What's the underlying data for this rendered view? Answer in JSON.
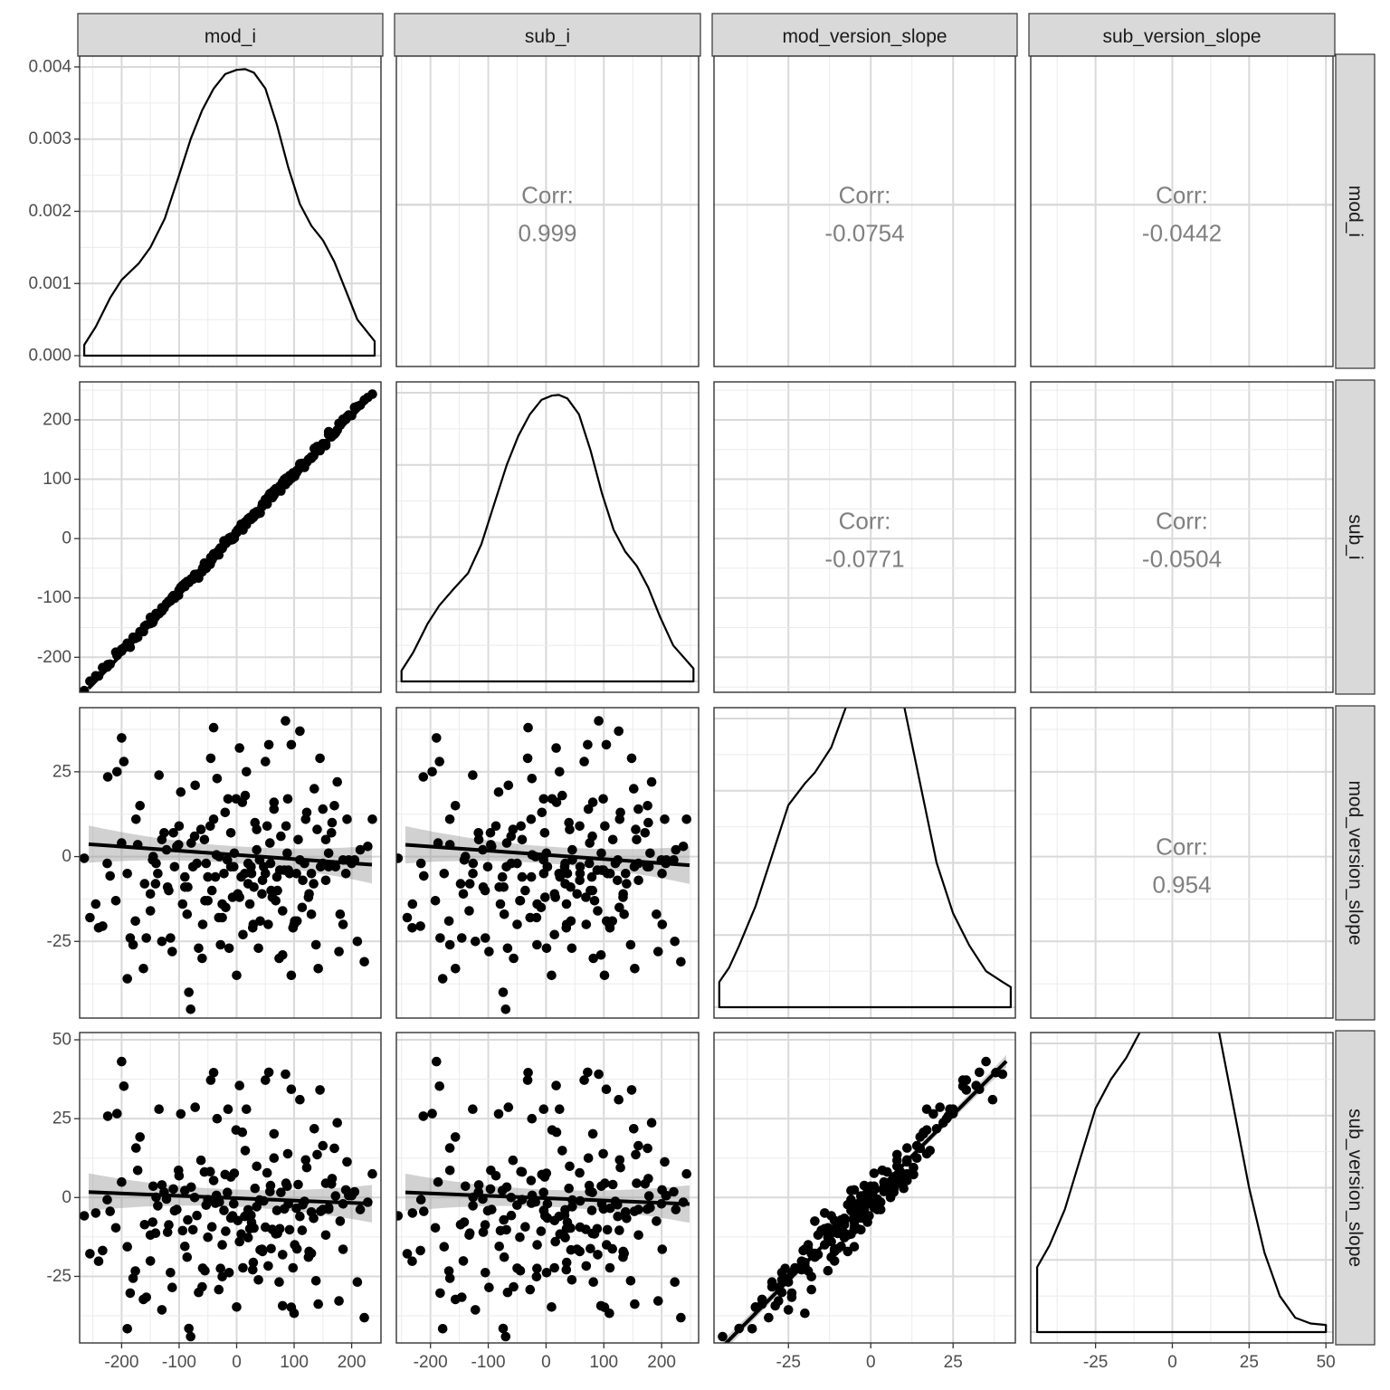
{
  "variables": [
    "mod_i",
    "sub_i",
    "mod_version_slope",
    "sub_version_slope"
  ],
  "corr_label": "Corr:",
  "chart_data": {
    "type": "scatter-matrix",
    "variables": [
      "mod_i",
      "sub_i",
      "mod_version_slope",
      "sub_version_slope"
    ],
    "ranges": {
      "mod_i": [
        -273,
        251
      ],
      "sub_i": [
        -259,
        264
      ],
      "mod_version_slope": [
        -47.6,
        43.9
      ],
      "sub_version_slope": [
        -46.1,
        52.3
      ]
    },
    "density_yrange": [
      -0.00015,
      0.00415
    ],
    "column_ticks": {
      "mod_i": [
        -200,
        -100,
        0,
        100,
        200
      ],
      "sub_i": [
        -200,
        -100,
        0,
        100,
        200
      ],
      "mod_version_slope": [
        -25,
        0,
        25
      ],
      "sub_version_slope": [
        -25,
        0,
        25,
        50
      ]
    },
    "row_ticks": {
      "mod_i": [
        0.0,
        0.001,
        0.002,
        0.003,
        0.004
      ],
      "sub_i": [
        -200,
        -100,
        0,
        100,
        200
      ],
      "mod_version_slope": [
        -25,
        0,
        25
      ],
      "sub_version_slope": [
        -25,
        0,
        25,
        50
      ]
    },
    "column_tick_labels": {
      "mod_i": [
        "-200",
        "-100",
        "0",
        "100",
        "200"
      ],
      "sub_i": [
        "-200",
        "-100",
        "0",
        "100",
        "200"
      ],
      "mod_version_slope": [
        "-25",
        "0",
        "25"
      ],
      "sub_version_slope": [
        "-25",
        "0",
        "25",
        "50"
      ]
    },
    "row_tick_labels": {
      "mod_i": [
        "0.000",
        "0.001",
        "0.002",
        "0.003",
        "0.004"
      ],
      "sub_i": [
        "-200",
        "-100",
        "0",
        "100",
        "200"
      ],
      "mod_version_slope": [
        "-25",
        "0",
        "25"
      ],
      "sub_version_slope": [
        "-25",
        "0",
        "25",
        "50"
      ]
    },
    "correlations": [
      {
        "row": "mod_i",
        "col": "sub_i",
        "value": "0.999"
      },
      {
        "row": "mod_i",
        "col": "mod_version_slope",
        "value": "-0.0754"
      },
      {
        "row": "mod_i",
        "col": "sub_version_slope",
        "value": "-0.0442"
      },
      {
        "row": "sub_i",
        "col": "mod_version_slope",
        "value": "-0.0771"
      },
      {
        "row": "sub_i",
        "col": "sub_version_slope",
        "value": "-0.0504"
      },
      {
        "row": "mod_version_slope",
        "col": "sub_version_slope",
        "value": "0.954"
      }
    ],
    "densities": {
      "mod_i": [
        [
          -265,
          0.00015
        ],
        [
          -245,
          0.0004
        ],
        [
          -220,
          0.0008
        ],
        [
          -200,
          0.00105
        ],
        [
          -170,
          0.00128
        ],
        [
          -150,
          0.0015
        ],
        [
          -125,
          0.0019
        ],
        [
          -100,
          0.0025
        ],
        [
          -80,
          0.003
        ],
        [
          -60,
          0.0034
        ],
        [
          -40,
          0.0037
        ],
        [
          -20,
          0.0039
        ],
        [
          0,
          0.00396
        ],
        [
          15,
          0.00397
        ],
        [
          30,
          0.00392
        ],
        [
          50,
          0.0037
        ],
        [
          70,
          0.0032
        ],
        [
          90,
          0.0026
        ],
        [
          110,
          0.0021
        ],
        [
          130,
          0.0018
        ],
        [
          150,
          0.0016
        ],
        [
          170,
          0.0013
        ],
        [
          190,
          0.0009
        ],
        [
          210,
          0.0005
        ],
        [
          240,
          0.0002
        ]
      ],
      "sub_i": [
        [
          -250,
          0.00015
        ],
        [
          -230,
          0.0004
        ],
        [
          -205,
          0.0008
        ],
        [
          -185,
          0.00105
        ],
        [
          -160,
          0.00128
        ],
        [
          -135,
          0.0015
        ],
        [
          -112,
          0.0019
        ],
        [
          -88,
          0.0025
        ],
        [
          -68,
          0.003
        ],
        [
          -48,
          0.0034
        ],
        [
          -28,
          0.0037
        ],
        [
          -8,
          0.0039
        ],
        [
          10,
          0.00396
        ],
        [
          22,
          0.00397
        ],
        [
          37,
          0.00392
        ],
        [
          57,
          0.0037
        ],
        [
          77,
          0.0032
        ],
        [
          97,
          0.0026
        ],
        [
          117,
          0.0021
        ],
        [
          137,
          0.0018
        ],
        [
          157,
          0.0016
        ],
        [
          177,
          0.0013
        ],
        [
          197,
          0.0009
        ],
        [
          220,
          0.0005
        ],
        [
          255,
          0.00018
        ]
      ],
      "mod_version_slope": [
        [
          -46,
          0.00035
        ],
        [
          -43,
          0.00055
        ],
        [
          -40,
          0.00085
        ],
        [
          -35,
          0.0014
        ],
        [
          -30,
          0.0021
        ],
        [
          -25,
          0.0028
        ],
        [
          -20,
          0.0031
        ],
        [
          -17,
          0.00325
        ],
        [
          -12,
          0.0036
        ],
        [
          -8,
          0.0041
        ],
        [
          -4,
          0.0046
        ],
        [
          -1,
          0.00505
        ],
        [
          1,
          0.00528
        ],
        [
          3,
          0.0052
        ],
        [
          6,
          0.0049
        ],
        [
          10,
          0.0042
        ],
        [
          15,
          0.0031
        ],
        [
          20,
          0.002
        ],
        [
          25,
          0.0013
        ],
        [
          30,
          0.00085
        ],
        [
          35,
          0.0005
        ],
        [
          40,
          0.00035
        ],
        [
          42.5,
          0.00028
        ]
      ],
      "sub_version_slope": [
        [
          -44,
          0.0009
        ],
        [
          -40,
          0.0012
        ],
        [
          -35,
          0.0017
        ],
        [
          -30,
          0.0024
        ],
        [
          -25,
          0.0031
        ],
        [
          -20,
          0.0035
        ],
        [
          -15,
          0.0038
        ],
        [
          -10,
          0.0042
        ],
        [
          -5,
          0.0046
        ],
        [
          0,
          0.005
        ],
        [
          4,
          0.00525
        ],
        [
          7,
          0.0052
        ],
        [
          10,
          0.0049
        ],
        [
          15,
          0.0042
        ],
        [
          20,
          0.0031
        ],
        [
          25,
          0.002
        ],
        [
          30,
          0.0011
        ],
        [
          35,
          0.0005
        ],
        [
          40,
          0.0002
        ],
        [
          45,
          0.00012
        ],
        [
          50,
          0.0001
        ]
      ]
    },
    "regression": {
      "sub_i|mod_i": {
        "intercept": 5,
        "slope": 1.0,
        "se": 1.5
      },
      "mod_version_slope|mod_i": {
        "intercept": 0.5,
        "slope": -0.0123,
        "se": 2.5
      },
      "mod_version_slope|sub_i": {
        "intercept": 0.5,
        "slope": -0.0123,
        "se": 2.5
      },
      "sub_version_slope|mod_i": {
        "intercept": -0.2,
        "slope": -0.0075,
        "se": 2.7
      },
      "sub_version_slope|sub_i": {
        "intercept": -0.2,
        "slope": -0.0075,
        "se": 2.7
      },
      "sub_version_slope|mod_version_slope": {
        "intercept": 0.0,
        "slope": 1.05,
        "se": 0.9
      }
    },
    "points": {
      "mod_i": [
        -265,
        -245,
        -240,
        -233,
        -224,
        -220,
        -208,
        -200,
        -196,
        -190,
        -185,
        -176,
        -172,
        -168,
        -162,
        -157,
        -150,
        -146,
        -141,
        -137,
        -130,
        -126,
        -122,
        -118,
        -112,
        -108,
        -104,
        -101,
        -97,
        -94,
        -90,
        -86,
        -83,
        -79,
        -76,
        -73,
        -69,
        -66,
        -62,
        -59,
        -56,
        -53,
        -50,
        -46,
        -43,
        -40,
        -37,
        -34,
        -31,
        -28,
        -25,
        -22,
        -19,
        -16,
        -13,
        -10,
        -7,
        -4,
        -1,
        2,
        5,
        8,
        11,
        14,
        17,
        20,
        23,
        26,
        29,
        32,
        35,
        38,
        41,
        44,
        47,
        50,
        53,
        56,
        59,
        62,
        65,
        68,
        71,
        74,
        77,
        80,
        83,
        86,
        89,
        92,
        95,
        98,
        101,
        104,
        107,
        110,
        114,
        118,
        122,
        126,
        130,
        134,
        138,
        142,
        146,
        150,
        155,
        160,
        166,
        172,
        178,
        185,
        192,
        200,
        210,
        222,
        236,
        -180,
        -115,
        -60,
        -20,
        15,
        45,
        80,
        110,
        150,
        -140,
        -90,
        -35,
        5,
        35,
        60,
        95,
        130,
        170,
        -200,
        -150,
        -120,
        -72,
        -45,
        -10,
        25,
        55,
        85,
        120,
        160,
        190,
        -160,
        -100,
        -50,
        -25,
        10,
        40,
        70,
        100,
        140,
        175,
        205,
        -210,
        -130,
        -80,
        -30,
        0,
        30,
        65,
        90,
        125,
        155,
        185,
        215,
        -255,
        -175,
        -110,
        -55,
        -15,
        20,
        50,
        75,
        105,
        135,
        165,
        195,
        228,
        -190,
        -135,
        -85,
        -40,
        -5,
        28,
        58,
        88,
        115,
        145,
        180,
        -225,
        -145,
        -95,
        -48,
        -12,
        18,
        48,
        78,
        112,
        148
      ],
      "sub_i": [],
      "mod_version_slope": [
        -0.5,
        -14,
        -21,
        -20.5,
        23.5,
        -5.7,
        25,
        35,
        28,
        -36,
        -24,
        -19,
        3.5,
        15,
        -33,
        -24,
        -11,
        -1,
        -8,
        -5,
        5,
        7,
        2,
        -10,
        -28,
        -3,
        3,
        3.5,
        19,
        -14,
        -6,
        -17,
        -40,
        4,
        -3,
        6,
        -2,
        -27,
        8,
        -20,
        5,
        -2,
        -6,
        9,
        -10,
        38,
        -6,
        23,
        -18,
        -26,
        -18,
        -5,
        -15,
        -1,
        -27,
        -3,
        -12,
        1,
        17,
        -11,
        32,
        -6,
        -23,
        -5,
        25,
        -8,
        -14,
        -5,
        -20,
        10,
        8,
        -27,
        -19,
        -11,
        -3,
        -5,
        9,
        33,
        -2,
        -12,
        16,
        -13,
        -10,
        -30,
        6,
        -16,
        -4,
        9,
        17,
        -5,
        33,
        -21,
        -19,
        -5,
        5,
        -1,
        -15,
        -2,
        13,
        -11,
        -5,
        -8,
        -26,
        -33,
        -3,
        -2,
        5,
        -3,
        10,
        -3,
        -28,
        -20,
        11,
        -2,
        -25,
        -31,
        11,
        -26,
        -24,
        -30,
        13,
        18,
        -7,
        -29,
        37,
        14,
        -2,
        -9,
        0.5,
        -12,
        2,
        -10,
        -35,
        -17,
        15,
        4,
        -16,
        -9,
        21,
        29,
        7,
        -3,
        -20,
        40,
        11,
        1,
        -5,
        -8,
        9,
        -13,
        -14,
        16,
        -1,
        -6,
        -20,
        8,
        22,
        -1,
        -13,
        -25,
        -45,
        0,
        -35,
        -9,
        14,
        -4,
        -12,
        -7,
        -1,
        2,
        -18,
        11,
        7,
        -13,
        17,
        -2,
        28,
        -4,
        -19,
        20,
        7,
        -1,
        3,
        -5,
        24,
        -9,
        11,
        -3,
        -21,
        4,
        1,
        -7,
        29,
        -17,
        -2,
        0
      ],
      "sub_version_slope": []
    }
  }
}
